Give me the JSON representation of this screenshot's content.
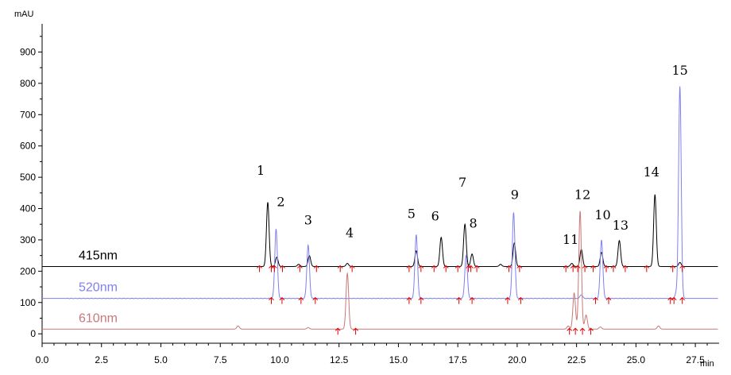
{
  "chart_data": {
    "type": "line",
    "title": "",
    "xlabel": "",
    "ylabel": "",
    "x_unit": "min",
    "y_unit": "mAU",
    "xlim": [
      0,
      28.5
    ],
    "ylim": [
      -30,
      990
    ],
    "x_ticks": [
      0.0,
      2.5,
      5.0,
      7.5,
      10.0,
      12.5,
      15.0,
      17.5,
      20.0,
      22.5,
      25.0,
      27.5
    ],
    "x_tick_labels": [
      "0.0",
      "2.5",
      "5.0",
      "7.5",
      "10.0",
      "12.5",
      "15.0",
      "17.5",
      "20.0",
      "22.5",
      "25.0",
      "27.5"
    ],
    "y_ticks": [
      0,
      100,
      200,
      300,
      400,
      500,
      600,
      700,
      800,
      900
    ],
    "y_tick_labels": [
      "0",
      "100",
      "200",
      "300",
      "400",
      "500",
      "600",
      "700",
      "800",
      "900"
    ],
    "grid": false,
    "series": [
      {
        "name": "415nm",
        "color": "#000000",
        "baseline": 215,
        "peaks": [
          {
            "x": 9.5,
            "y": 420
          },
          {
            "x": 9.88,
            "y": 245
          },
          {
            "x": 10.8,
            "y": 222
          },
          {
            "x": 11.25,
            "y": 250
          },
          {
            "x": 12.85,
            "y": 225
          },
          {
            "x": 15.75,
            "y": 265
          },
          {
            "x": 16.8,
            "y": 308
          },
          {
            "x": 17.8,
            "y": 350
          },
          {
            "x": 18.1,
            "y": 255
          },
          {
            "x": 19.3,
            "y": 222
          },
          {
            "x": 19.88,
            "y": 290
          },
          {
            "x": 22.3,
            "y": 225
          },
          {
            "x": 22.7,
            "y": 270
          },
          {
            "x": 23.55,
            "y": 260
          },
          {
            "x": 24.3,
            "y": 298
          },
          {
            "x": 25.8,
            "y": 445
          },
          {
            "x": 26.85,
            "y": 228
          }
        ]
      },
      {
        "name": "520nm",
        "color": "#8080ee",
        "baseline": 113,
        "peaks": [
          {
            "x": 9.85,
            "y": 335
          },
          {
            "x": 11.2,
            "y": 283
          },
          {
            "x": 15.75,
            "y": 317
          },
          {
            "x": 17.85,
            "y": 250
          },
          {
            "x": 19.85,
            "y": 388
          },
          {
            "x": 22.7,
            "y": 125
          },
          {
            "x": 23.55,
            "y": 300
          },
          {
            "x": 26.7,
            "y": 130
          },
          {
            "x": 26.85,
            "y": 790
          }
        ]
      },
      {
        "name": "610nm",
        "color": "#c87878",
        "baseline": 15,
        "peaks": [
          {
            "x": 8.25,
            "y": 25
          },
          {
            "x": 11.2,
            "y": 20
          },
          {
            "x": 12.85,
            "y": 193
          },
          {
            "x": 22.15,
            "y": 25
          },
          {
            "x": 22.4,
            "y": 130
          },
          {
            "x": 22.65,
            "y": 392
          },
          {
            "x": 22.9,
            "y": 60
          },
          {
            "x": 23.5,
            "y": 22
          },
          {
            "x": 25.95,
            "y": 25
          }
        ]
      }
    ],
    "annotations": [
      {
        "text": "1",
        "x": 9.2,
        "y": 520
      },
      {
        "text": "2",
        "x": 10.05,
        "y": 420
      },
      {
        "text": "3",
        "x": 11.2,
        "y": 362
      },
      {
        "text": "4",
        "x": 12.95,
        "y": 322
      },
      {
        "text": "5",
        "x": 15.55,
        "y": 382
      },
      {
        "text": "6",
        "x": 16.55,
        "y": 375
      },
      {
        "text": "7",
        "x": 17.7,
        "y": 483
      },
      {
        "text": "8",
        "x": 18.15,
        "y": 352
      },
      {
        "text": "9",
        "x": 19.9,
        "y": 443
      },
      {
        "text": "11",
        "x": 22.25,
        "y": 300
      },
      {
        "text": "12",
        "x": 22.75,
        "y": 443
      },
      {
        "text": "10",
        "x": 23.6,
        "y": 378
      },
      {
        "text": "13",
        "x": 24.35,
        "y": 345
      },
      {
        "text": "14",
        "x": 25.65,
        "y": 515
      },
      {
        "text": "15",
        "x": 26.85,
        "y": 840
      }
    ]
  },
  "integration_markers": {
    "color": "#e00000",
    "events": [
      {
        "baseline": 215,
        "x": [
          9.15,
          9.65,
          9.78,
          10.12,
          10.85,
          11.55,
          12.55,
          13.05,
          15.45,
          15.95,
          16.5,
          17.0,
          17.5,
          17.95,
          18.05,
          18.3,
          19.65,
          20.1,
          22.05,
          22.35,
          22.55,
          22.85,
          23.2,
          23.75,
          24.05,
          24.55,
          25.45,
          26.55,
          26.95
        ]
      },
      {
        "baseline": 113,
        "x": [
          9.65,
          10.1,
          10.9,
          11.5,
          15.45,
          15.95,
          17.55,
          18.1,
          19.6,
          20.15,
          23.3,
          23.85,
          26.45,
          26.6,
          26.95
        ]
      },
      {
        "baseline": 15,
        "x": [
          12.45,
          13.2,
          22.2,
          22.45,
          22.75,
          23.1
        ]
      }
    ]
  }
}
